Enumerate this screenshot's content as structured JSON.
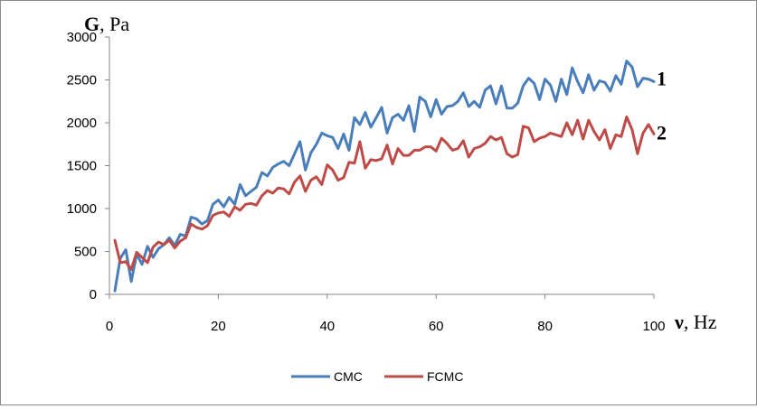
{
  "chart_data": {
    "type": "line",
    "ylabel": "G, Pa",
    "ylabel_bold": "G",
    "ylabel_rest": ", Pa",
    "xlabel": "ν, Hz",
    "xlabel_bold": "ν",
    "xlabel_rest": ", Hz",
    "xlim": [
      0,
      100
    ],
    "ylim": [
      0,
      3000
    ],
    "xticks": [
      0,
      20,
      40,
      60,
      80,
      100
    ],
    "yticks": [
      0,
      500,
      1000,
      1500,
      2000,
      2500,
      3000
    ],
    "grid": false,
    "legend": "bottom",
    "series": [
      {
        "name": "CMC",
        "end_label": "1",
        "color": "#4a7ebb",
        "x": [
          1,
          2,
          3,
          4,
          5,
          6,
          7,
          8,
          9,
          10,
          11,
          12,
          13,
          14,
          15,
          16,
          17,
          18,
          19,
          20,
          21,
          22,
          23,
          24,
          25,
          26,
          27,
          28,
          29,
          30,
          31,
          32,
          33,
          34,
          35,
          36,
          37,
          38,
          39,
          40,
          41,
          42,
          43,
          44,
          45,
          46,
          47,
          48,
          49,
          50,
          51,
          52,
          53,
          54,
          55,
          56,
          57,
          58,
          59,
          60,
          61,
          62,
          63,
          64,
          65,
          66,
          67,
          68,
          69,
          70,
          71,
          72,
          73,
          74,
          75,
          76,
          77,
          78,
          79,
          80,
          81,
          82,
          83,
          84,
          85,
          86,
          87,
          88,
          89,
          90,
          91,
          92,
          93,
          94,
          95,
          96,
          97,
          98,
          99,
          100
        ],
        "y": [
          40,
          420,
          520,
          150,
          470,
          350,
          560,
          430,
          530,
          580,
          660,
          570,
          700,
          680,
          900,
          880,
          820,
          860,
          1050,
          1100,
          1020,
          1130,
          1050,
          1280,
          1150,
          1200,
          1250,
          1420,
          1380,
          1480,
          1520,
          1550,
          1500,
          1640,
          1780,
          1450,
          1650,
          1750,
          1880,
          1850,
          1830,
          1700,
          1870,
          1680,
          2060,
          1980,
          2120,
          1950,
          2060,
          2180,
          1880,
          2060,
          2100,
          2030,
          2200,
          1900,
          2300,
          2250,
          2070,
          2270,
          2100,
          2190,
          2200,
          2250,
          2350,
          2190,
          2250,
          2180,
          2380,
          2430,
          2220,
          2430,
          2170,
          2170,
          2230,
          2430,
          2520,
          2460,
          2270,
          2510,
          2440,
          2250,
          2510,
          2330,
          2640,
          2480,
          2350,
          2560,
          2380,
          2490,
          2470,
          2370,
          2550,
          2450,
          2720,
          2650,
          2420,
          2520,
          2510,
          2480
        ]
      },
      {
        "name": "FCMC",
        "end_label": "2",
        "color": "#be4b48",
        "x": [
          1,
          2,
          3,
          4,
          5,
          6,
          7,
          8,
          9,
          10,
          11,
          12,
          13,
          14,
          15,
          16,
          17,
          18,
          19,
          20,
          21,
          22,
          23,
          24,
          25,
          26,
          27,
          28,
          29,
          30,
          31,
          32,
          33,
          34,
          35,
          36,
          37,
          38,
          39,
          40,
          41,
          42,
          43,
          44,
          45,
          46,
          47,
          48,
          49,
          50,
          51,
          52,
          53,
          54,
          55,
          56,
          57,
          58,
          59,
          60,
          61,
          62,
          63,
          64,
          65,
          66,
          67,
          68,
          69,
          70,
          71,
          72,
          73,
          74,
          75,
          76,
          77,
          78,
          79,
          80,
          81,
          82,
          83,
          84,
          85,
          86,
          87,
          88,
          89,
          90,
          91,
          92,
          93,
          94,
          95,
          96,
          97,
          98,
          99,
          100
        ],
        "y": [
          630,
          370,
          380,
          290,
          490,
          430,
          370,
          550,
          610,
          580,
          630,
          540,
          620,
          660,
          820,
          780,
          760,
          800,
          920,
          950,
          960,
          910,
          1020,
          980,
          1050,
          1060,
          1040,
          1150,
          1210,
          1180,
          1240,
          1230,
          1170,
          1310,
          1380,
          1200,
          1330,
          1370,
          1280,
          1510,
          1450,
          1330,
          1360,
          1540,
          1530,
          1780,
          1470,
          1570,
          1560,
          1580,
          1740,
          1520,
          1700,
          1620,
          1620,
          1680,
          1680,
          1720,
          1720,
          1670,
          1820,
          1760,
          1680,
          1700,
          1790,
          1600,
          1700,
          1720,
          1760,
          1840,
          1800,
          1830,
          1640,
          1600,
          1630,
          1960,
          1940,
          1780,
          1820,
          1840,
          1880,
          1860,
          1840,
          2000,
          1860,
          2030,
          1810,
          2030,
          1900,
          1800,
          1920,
          1700,
          1860,
          1840,
          2070,
          1920,
          1640,
          1880,
          1980,
          1870
        ]
      }
    ]
  }
}
